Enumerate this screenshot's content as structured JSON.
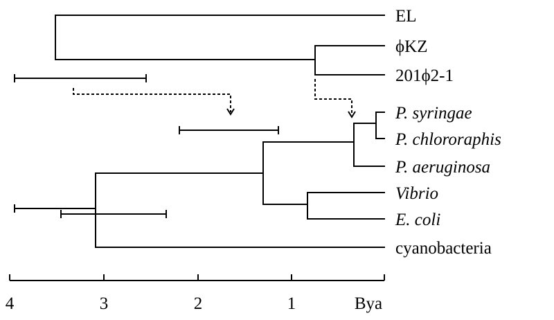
{
  "taxa": {
    "el": "EL",
    "phikz": "ϕKZ",
    "p201phi21": "201ϕ2-1",
    "p_syringae": "P. syringae",
    "p_chlororaphis": "P. chlororaphis",
    "p_aeruginosa": "P. aeruginosa",
    "vibrio": "Vibrio",
    "e_coli": "E. coli",
    "cyanobacteria": "cyanobacteria"
  },
  "axis": {
    "ticks": [
      "4",
      "3",
      "2",
      "1"
    ],
    "unit": "Bya"
  }
}
